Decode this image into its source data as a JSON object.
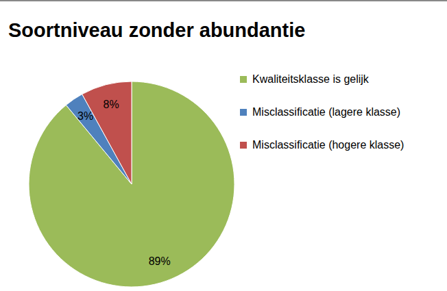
{
  "chart_data": {
    "type": "pie",
    "title": "Soortniveau zonder abundantie",
    "categories": [
      "Kwaliteitsklasse is gelijk",
      "Misclassificatie (lagere klasse)",
      "Misclassificatie (hogere klasse)"
    ],
    "values": [
      89,
      3,
      8
    ],
    "value_labels": [
      "89%",
      "3%",
      "8%"
    ],
    "colors": [
      "#9bbb59",
      "#4f81bd",
      "#c0504d"
    ],
    "data_labels": true,
    "legend": "right"
  }
}
